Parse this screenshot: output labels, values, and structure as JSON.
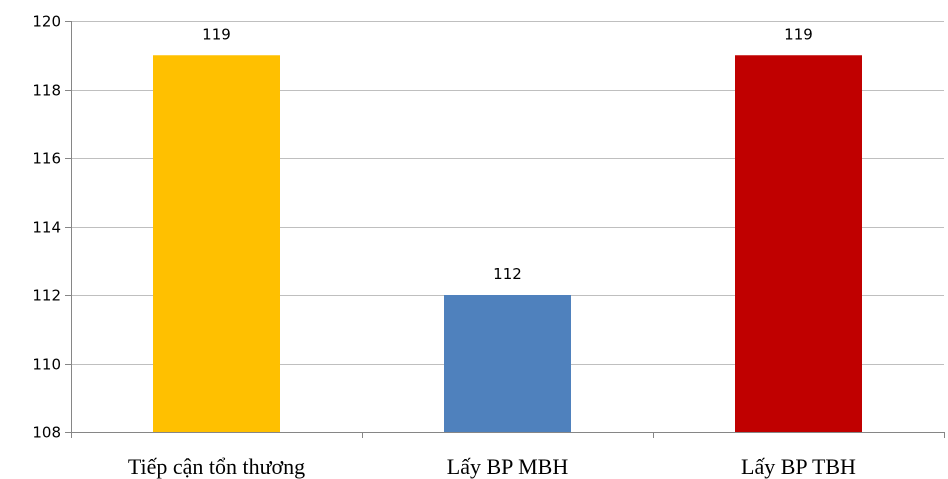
{
  "chart_data": {
    "type": "bar",
    "categories": [
      "Tiếp cận tổn thương",
      "Lấy BP MBH",
      "Lấy BP TBH"
    ],
    "values": [
      119,
      112,
      119
    ],
    "colors": [
      "#FFC000",
      "#4F81BD",
      "#C00000"
    ],
    "data_labels": [
      "119",
      "112",
      "119"
    ],
    "ylim": [
      108,
      120
    ],
    "yticks": [
      108,
      110,
      112,
      114,
      116,
      118,
      120
    ],
    "ytick_labels": [
      "108",
      "110",
      "112",
      "114",
      "116",
      "118",
      "120"
    ],
    "grid": true,
    "legend": "none"
  }
}
